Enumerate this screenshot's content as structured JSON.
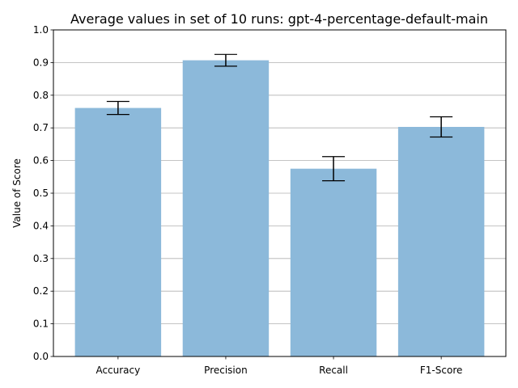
{
  "chart_data": {
    "type": "bar",
    "title": "Average values in set of 10 runs: gpt-4-percentage-default-main",
    "xlabel": "",
    "ylabel": "Value of Score",
    "categories": [
      "Accuracy",
      "Precision",
      "Recall",
      "F1-Score"
    ],
    "values": [
      0.761,
      0.907,
      0.575,
      0.703
    ],
    "error": [
      0.02,
      0.018,
      0.037,
      0.031
    ],
    "ylim": [
      0,
      1.0
    ],
    "yticks": [
      "0.0",
      "0.1",
      "0.2",
      "0.3",
      "0.4",
      "0.5",
      "0.6",
      "0.7",
      "0.8",
      "0.9",
      "1.0"
    ],
    "grid": "horizontal",
    "bar_color": "#8cb9da",
    "error_color": "#000000"
  }
}
